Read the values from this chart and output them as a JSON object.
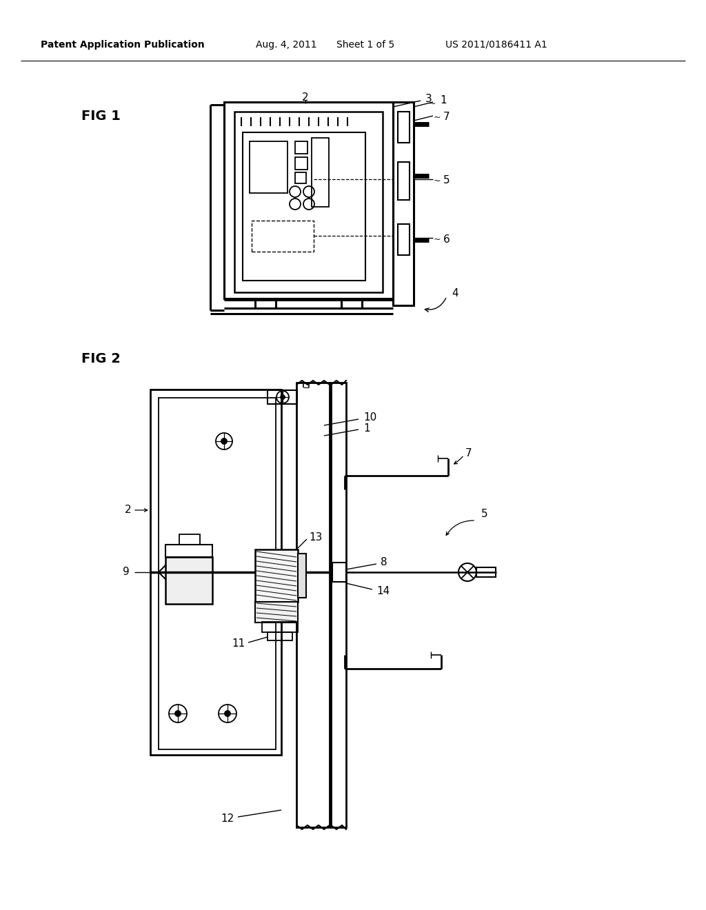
{
  "background_color": "#ffffff",
  "header_text": "Patent Application Publication",
  "header_date": "Aug. 4, 2011",
  "header_sheet": "Sheet 1 of 5",
  "header_patent": "US 2011/0186411 A1",
  "fig1_label": "FIG 1",
  "fig2_label": "FIG 2"
}
